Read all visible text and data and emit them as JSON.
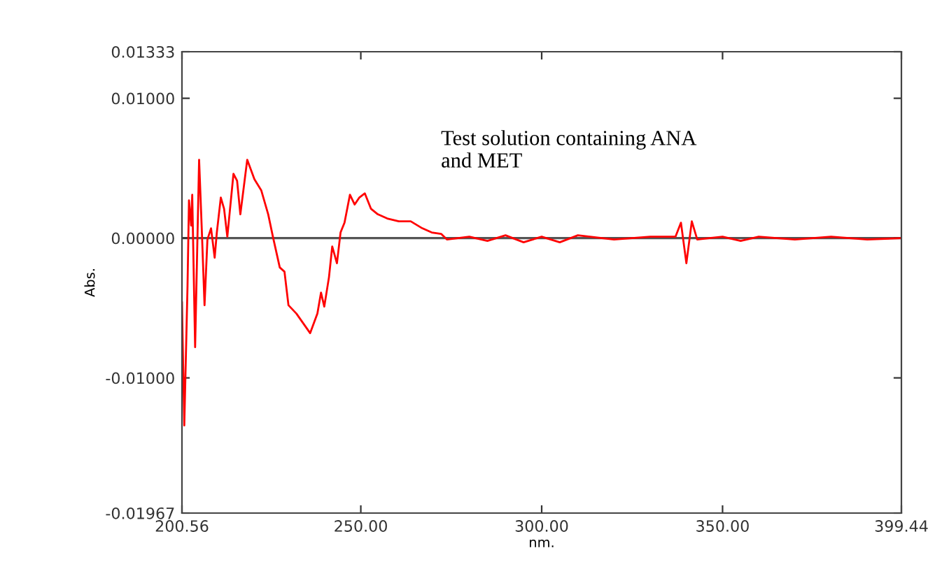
{
  "chart_data": {
    "type": "line",
    "xlabel": "nm.",
    "ylabel": "Abs.",
    "annotations": [
      "Test solution containing ANA\nand MET"
    ],
    "xlim": [
      200.56,
      399.44
    ],
    "xticks": [
      {
        "value": 200.56,
        "label": "200.56"
      },
      {
        "value": 250,
        "label": "250.00"
      },
      {
        "value": 300,
        "label": "300.00"
      },
      {
        "value": 350,
        "label": "350.00"
      },
      {
        "value": 399.44,
        "label": "399.44"
      }
    ],
    "ylim": [
      -0.01967,
      0.01333
    ],
    "yticks": [
      {
        "value": -0.01967,
        "label": "-0.01967"
      },
      {
        "value": -0.01,
        "label": "-0.01000"
      },
      {
        "value": 0,
        "label": "0.00000"
      },
      {
        "value": 0.01,
        "label": "0.01000"
      },
      {
        "value": 0.01333,
        "label": "0.01333"
      }
    ],
    "grid": false,
    "legend": false,
    "marker": "none",
    "line_style": "solid",
    "ref_lines": [
      {
        "axis": "y",
        "value": 0,
        "label": null,
        "color": "#555555"
      }
    ],
    "series": [
      {
        "color": "#ff0000",
        "x": [
          200.56,
          201.2,
          202.1,
          202.5,
          203.1,
          203.4,
          204.2,
          205.3,
          206.0,
          206.8,
          207.6,
          208.6,
          209.6,
          210.2,
          211.3,
          212.2,
          213.1,
          214.8,
          215.8,
          216.7,
          218.6,
          220.6,
          222.5,
          224.4,
          225.7,
          227.6,
          228.9,
          230.0,
          232.2,
          234.1,
          236.0,
          238.0,
          239.0,
          239.9,
          241.2,
          242.1,
          243.4,
          244.4,
          245.5,
          247.0,
          248.3,
          249.6,
          251.1,
          252.8,
          254.7,
          257.3,
          260.5,
          263.8,
          267.0,
          269.6,
          272.2,
          273.8,
          280,
          285,
          290,
          295,
          300,
          305,
          310,
          320,
          330,
          337,
          338.5,
          340,
          341.5,
          343,
          350,
          355,
          360,
          370,
          380,
          390,
          399.44
        ],
        "values": [
          -0.0046,
          -0.0134,
          -0.0034,
          0.0027,
          0.0009,
          0.0031,
          -0.0078,
          0.0056,
          0.0009,
          -0.0048,
          -0.0001,
          0.0007,
          -0.0014,
          0.0004,
          0.0029,
          0.0021,
          0.0001,
          0.0046,
          0.0041,
          0.0017,
          0.0056,
          0.0042,
          0.0034,
          0.0017,
          0.0001,
          -0.0021,
          -0.0024,
          -0.0048,
          -0.0054,
          -0.0061,
          -0.0068,
          -0.0054,
          -0.0039,
          -0.0049,
          -0.0028,
          -0.0006,
          -0.0018,
          0.0004,
          0.0011,
          0.0031,
          0.0024,
          0.0029,
          0.0032,
          0.0021,
          0.0017,
          0.0014,
          0.0012,
          0.0012,
          0.0007,
          0.0004,
          0.0003,
          -0.0001,
          0.0001,
          -0.0002,
          0.0002,
          -0.0003,
          0.0001,
          -0.0003,
          0.0002,
          -0.0001,
          0.0001,
          0.0001,
          0.0011,
          -0.0018,
          0.0012,
          -0.0001,
          0.0001,
          -0.0002,
          0.0001,
          -0.0001,
          0.0001,
          -0.0001,
          0.0
        ]
      }
    ]
  }
}
